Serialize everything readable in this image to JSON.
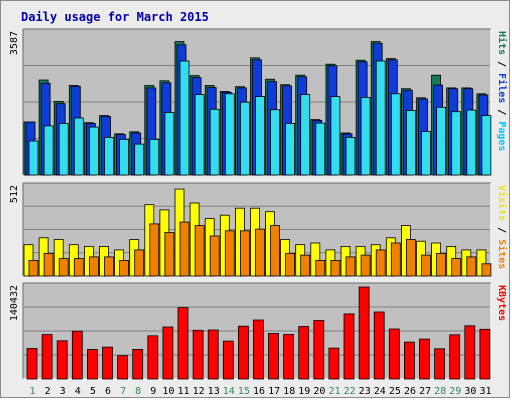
{
  "chart_data": {
    "type": "bar",
    "title": "Daily usage for March 2015",
    "categories": [
      "1",
      "2",
      "3",
      "4",
      "5",
      "6",
      "7",
      "8",
      "9",
      "10",
      "11",
      "12",
      "13",
      "14",
      "15",
      "16",
      "17",
      "18",
      "19",
      "20",
      "21",
      "22",
      "23",
      "24",
      "25",
      "26",
      "27",
      "28",
      "29",
      "30",
      "31"
    ],
    "weekend_days": [
      "1",
      "7",
      "8",
      "14",
      "15",
      "21",
      "22",
      "28",
      "29"
    ],
    "panels": [
      {
        "id": "top",
        "ymax_label": "3587",
        "ymax": 3587,
        "axis_labels": [
          {
            "text": "Pages",
            "color": "#00c8ff"
          },
          {
            "text": "Files",
            "color": "#0f3bd8"
          },
          {
            "text": "Hits",
            "color": "#147a5a"
          }
        ],
        "series": [
          {
            "name": "Hits",
            "color": "#147a5a",
            "values": [
              1340,
              2400,
              1860,
              2260,
              1320,
              1500,
              1040,
              1090,
              2260,
              2380,
              3370,
              2510,
              2260,
              2110,
              2230,
              2960,
              2420,
              2280,
              2520,
              1400,
              2800,
              1060,
              2900,
              3370,
              2940,
              2180,
              1950,
              2520,
              2200,
              2200,
              2050
            ]
          },
          {
            "name": "Files",
            "color": "#0f3bd8",
            "values": [
              1340,
              2320,
              1800,
              2240,
              1300,
              1480,
              1020,
              1060,
              2200,
              2330,
              3290,
              2460,
              2210,
              2090,
              2200,
              2910,
              2360,
              2250,
              2480,
              1380,
              2760,
              1040,
              2860,
              3330,
              2910,
              2140,
              1920,
              2270,
              2180,
              2180,
              2020
            ]
          },
          {
            "name": "Pages",
            "color": "#33ddee",
            "values": [
              860,
              1240,
              1300,
              1440,
              1210,
              950,
              900,
              780,
              900,
              1580,
              2880,
              2030,
              1660,
              2050,
              1840,
              1980,
              1650,
              1300,
              2030,
              1310,
              1980,
              950,
              1960,
              2880,
              2050,
              1630,
              1100,
              1710,
              1600,
              1640,
              1500
            ]
          }
        ]
      },
      {
        "id": "middle",
        "ymax_label": "512",
        "ymax": 512,
        "axis_labels": [
          {
            "text": "Sites",
            "color": "#f08000"
          },
          {
            "text": "Visits",
            "color": "#e8e800"
          }
        ],
        "series": [
          {
            "name": "Visits",
            "color": "#ffff00",
            "values": [
              180,
              220,
              210,
              180,
              170,
              170,
              150,
              210,
              410,
              380,
              500,
              420,
              330,
              350,
              390,
              390,
              370,
              210,
              180,
              190,
              150,
              170,
              170,
              180,
              220,
              290,
              200,
              190,
              170,
              150,
              150
            ]
          },
          {
            "name": "Sites",
            "color": "#f08000",
            "values": [
              90,
              130,
              100,
              100,
              110,
              110,
              90,
              150,
              300,
              250,
              310,
              290,
              230,
              260,
              260,
              270,
              290,
              130,
              120,
              90,
              90,
              110,
              120,
              150,
              190,
              210,
              120,
              130,
              100,
              110,
              70
            ]
          }
        ]
      },
      {
        "id": "bottom",
        "ymax_label": "140432",
        "ymax": 140432,
        "axis_labels": [
          {
            "text": "KBytes",
            "color": "#ff0000"
          }
        ],
        "series": [
          {
            "name": "KBytes",
            "color": "#ff0000",
            "values": [
              46500,
              67700,
              58300,
              73000,
              45100,
              48700,
              35600,
              45200,
              66000,
              79400,
              108900,
              74300,
              74800,
              57800,
              80600,
              90000,
              69600,
              68000,
              80100,
              89300,
              47100,
              99400,
              140400,
              102300,
              76300,
              56300,
              60900,
              46100,
              67400,
              81200,
              75800
            ]
          }
        ]
      }
    ]
  }
}
